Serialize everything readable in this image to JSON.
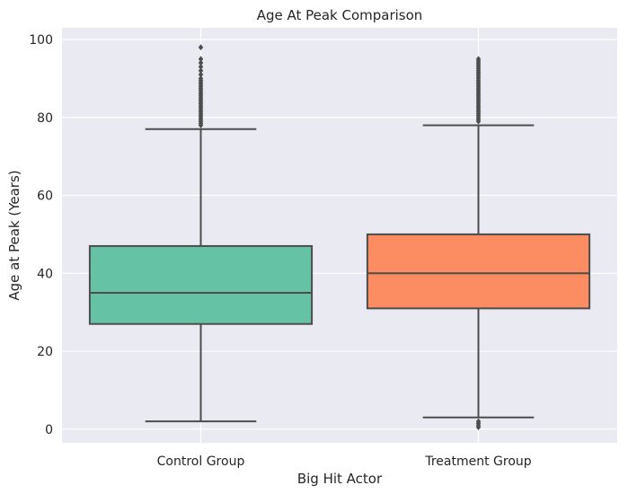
{
  "chart_data": {
    "type": "box",
    "title": "Age At Peak Comparison",
    "xlabel": "Big Hit Actor",
    "ylabel": "Age at Peak (Years)",
    "ylim": [
      -3.5,
      103
    ],
    "yticks": [
      0,
      20,
      40,
      60,
      80,
      100
    ],
    "grid": true,
    "categories": [
      "Control Group",
      "Treatment Group"
    ],
    "boxes": [
      {
        "category": "Control Group",
        "whisker_low": 2,
        "q1": 27,
        "median": 35,
        "q3": 47,
        "whisker_high": 77,
        "outliers": [
          78,
          78.5,
          79,
          79.5,
          80,
          80.5,
          81,
          81.5,
          82,
          82.5,
          83,
          83.5,
          84,
          84.5,
          85,
          85.5,
          86,
          86.5,
          87,
          87.5,
          88,
          88.5,
          89,
          89.5,
          90,
          91,
          92,
          93,
          94,
          95,
          98
        ],
        "color": "#66c2a5"
      },
      {
        "category": "Treatment Group",
        "whisker_low": 3,
        "q1": 31,
        "median": 40,
        "q3": 50,
        "whisker_high": 78,
        "outliers": [
          79,
          79.5,
          80,
          80.5,
          81,
          81.5,
          82,
          82.5,
          83,
          83.5,
          84,
          84.5,
          85,
          85.5,
          86,
          86.5,
          87,
          87.5,
          88,
          88.5,
          89,
          89.5,
          90,
          90.5,
          91,
          91.5,
          92,
          92.5,
          93,
          93.5,
          94,
          94.5,
          95,
          0.5,
          1,
          1.5,
          2
        ],
        "color": "#fc8d62"
      }
    ],
    "colors": {
      "plot_background": "#eaeaf2",
      "grid": "#ffffff",
      "line": "#4d4d4d"
    }
  }
}
